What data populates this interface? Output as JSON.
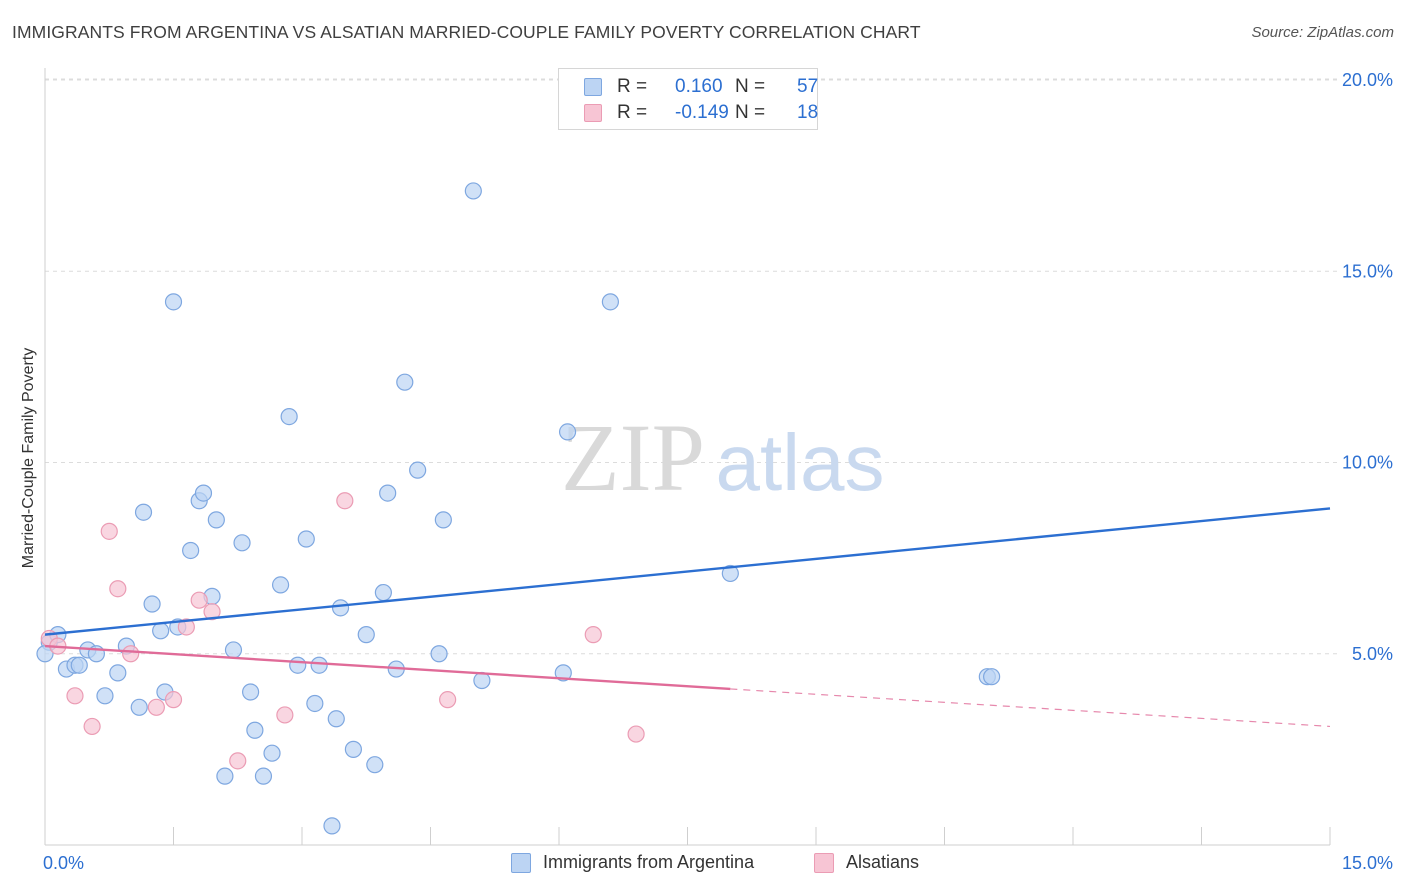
{
  "title": "IMMIGRANTS FROM ARGENTINA VS ALSATIAN MARRIED-COUPLE FAMILY POVERTY CORRELATION CHART",
  "source": "Source: ZipAtlas.com",
  "watermark": {
    "zip": "ZIP",
    "atlas": "atlas"
  },
  "legend_stats": [
    {
      "r_label": "R =",
      "r_value": "0.160",
      "n_label": "N =",
      "n_value": "57"
    },
    {
      "r_label": "R =",
      "r_value": "-0.149",
      "n_label": "N =",
      "n_value": "18"
    }
  ],
  "chart_data": {
    "type": "scatter",
    "ylabel": "Married-Couple Family Poverty",
    "xlim": [
      0,
      15
    ],
    "ylim": [
      0,
      20
    ],
    "x_tick_labels": [
      "0.0%",
      "15.0%"
    ],
    "y_ticks": [
      5,
      10,
      15,
      20
    ],
    "y_tick_labels": [
      "5.0%",
      "10.0%",
      "15.0%",
      "20.0%"
    ],
    "grid": true,
    "legend_position": "bottom",
    "colors": {
      "blue": "#2c6fd1",
      "pink": "#e06b98",
      "blue_fill": "#bcd4f3",
      "pink_fill": "#f7c5d4"
    },
    "series": [
      {
        "name": "Immigrants from Argentina",
        "color": "blue",
        "trend": {
          "x": [
            0,
            15
          ],
          "y": [
            5.5,
            8.8
          ],
          "solid_to": 15
        },
        "points": [
          [
            0.05,
            5.3
          ],
          [
            0.15,
            5.5
          ],
          [
            0.25,
            4.6
          ],
          [
            0.35,
            4.7
          ],
          [
            0.4,
            4.7
          ],
          [
            0.5,
            5.1
          ],
          [
            0.6,
            5.0
          ],
          [
            0.7,
            3.9
          ],
          [
            0.85,
            4.5
          ],
          [
            0.95,
            5.2
          ],
          [
            1.1,
            3.6
          ],
          [
            1.15,
            8.7
          ],
          [
            1.25,
            6.3
          ],
          [
            1.35,
            5.6
          ],
          [
            1.4,
            4.0
          ],
          [
            1.5,
            14.2
          ],
          [
            1.55,
            5.7
          ],
          [
            1.7,
            7.7
          ],
          [
            1.8,
            9.0
          ],
          [
            1.85,
            9.2
          ],
          [
            1.95,
            6.5
          ],
          [
            2.0,
            8.5
          ],
          [
            2.1,
            1.8
          ],
          [
            2.2,
            5.1
          ],
          [
            2.3,
            7.9
          ],
          [
            2.4,
            4.0
          ],
          [
            2.45,
            3.0
          ],
          [
            2.55,
            1.8
          ],
          [
            2.65,
            2.4
          ],
          [
            2.75,
            6.8
          ],
          [
            2.85,
            11.2
          ],
          [
            2.95,
            4.7
          ],
          [
            3.05,
            8.0
          ],
          [
            3.15,
            3.7
          ],
          [
            3.2,
            4.7
          ],
          [
            3.35,
            0.5
          ],
          [
            3.4,
            3.3
          ],
          [
            3.45,
            6.2
          ],
          [
            3.6,
            2.5
          ],
          [
            3.75,
            5.5
          ],
          [
            3.85,
            2.1
          ],
          [
            3.95,
            6.6
          ],
          [
            4.0,
            9.2
          ],
          [
            4.1,
            4.6
          ],
          [
            4.2,
            12.1
          ],
          [
            4.35,
            9.8
          ],
          [
            4.6,
            5.0
          ],
          [
            4.65,
            8.5
          ],
          [
            5.0,
            17.1
          ],
          [
            5.1,
            4.3
          ],
          [
            6.05,
            4.5
          ],
          [
            6.1,
            10.8
          ],
          [
            6.6,
            14.2
          ],
          [
            8.0,
            7.1
          ],
          [
            11.0,
            4.4
          ],
          [
            11.05,
            4.4
          ],
          [
            0.0,
            5.0
          ]
        ]
      },
      {
        "name": "Alsatians",
        "color": "pink",
        "trend": {
          "x": [
            0,
            15
          ],
          "y": [
            5.2,
            3.1
          ],
          "solid_to": 8.0
        },
        "points": [
          [
            0.05,
            5.4
          ],
          [
            0.15,
            5.2
          ],
          [
            0.35,
            3.9
          ],
          [
            0.55,
            3.1
          ],
          [
            0.75,
            8.2
          ],
          [
            0.85,
            6.7
          ],
          [
            1.0,
            5.0
          ],
          [
            1.3,
            3.6
          ],
          [
            1.5,
            3.8
          ],
          [
            1.65,
            5.7
          ],
          [
            1.8,
            6.4
          ],
          [
            1.95,
            6.1
          ],
          [
            2.25,
            2.2
          ],
          [
            2.8,
            3.4
          ],
          [
            3.5,
            9.0
          ],
          [
            4.7,
            3.8
          ],
          [
            6.4,
            5.5
          ],
          [
            6.9,
            2.9
          ]
        ]
      }
    ]
  }
}
